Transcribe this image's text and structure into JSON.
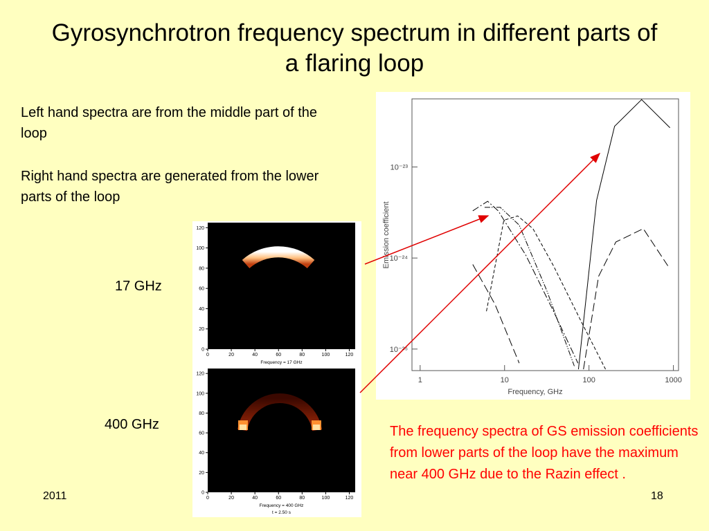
{
  "title": "Gyrosynchrotron frequency spectrum in different parts of a flaring loop",
  "paragraphs": [
    "Left hand spectra are from the middle part of the loop",
    "Right hand spectra are generated from the lower parts of the loop"
  ],
  "panels": [
    {
      "label": "17 GHz",
      "caption": "Frequency =  17 GHz",
      "lim": [
        0,
        125
      ],
      "xticks": [
        0,
        20,
        40,
        60,
        80,
        100,
        120
      ],
      "yticks": [
        0,
        20,
        40,
        60,
        80,
        100,
        120
      ]
    },
    {
      "label": "400 GHz",
      "caption": "Frequency = 400 GHz",
      "time": "t = 2.50 s",
      "lim": [
        0,
        125
      ],
      "xticks": [
        0,
        20,
        40,
        60,
        80,
        100,
        120
      ],
      "yticks": [
        0,
        20,
        40,
        60,
        80,
        100,
        120
      ]
    }
  ],
  "chart_data": {
    "type": "line",
    "xlabel": "Frequency, GHz",
    "ylabel": "Emission  coefficient",
    "log_x": true,
    "log_y": true,
    "xlim": [
      0.8,
      1150
    ],
    "ylim": [
      5.8e-26,
      5.6e-23
    ],
    "xticks": [
      1,
      10,
      100,
      1000
    ],
    "yticks": [
      {
        "value": 1e-25,
        "label": "10⁻²⁵"
      },
      {
        "value": 1e-24,
        "label": "10⁻²⁴"
      },
      {
        "value": 1e-23,
        "label": "10⁻²³"
      }
    ],
    "series": [
      {
        "color": "#000000",
        "dash": "solid",
        "x": [
          75,
          123,
          201,
          420,
          910
        ],
        "values": [
          6e-26,
          4.3e-24,
          2.8e-23,
          5.5e-23,
          2.7e-23
        ]
      },
      {
        "color": "#000000",
        "dash": "dash-dot",
        "x": [
          4.2,
          6.3,
          8.4,
          17.9,
          38,
          74
        ],
        "values": [
          3.3e-24,
          4.2e-24,
          3.3e-24,
          1.07e-24,
          2.6e-25,
          7e-26
        ]
      },
      {
        "color": "#000000",
        "dash": "dash-dot-dot",
        "x": [
          5.8,
          8.9,
          14.9,
          31.6,
          67
        ],
        "values": [
          3.6e-24,
          3.6e-24,
          2.3e-24,
          4.4e-25,
          6.5e-26
        ]
      },
      {
        "color": "#000000",
        "dash": "dash",
        "x": [
          6.1,
          9.8,
          14.3,
          21.7,
          38,
          81,
          157
        ],
        "values": [
          2.6e-25,
          2.6e-24,
          2.9e-24,
          2.1e-24,
          8.2e-25,
          2e-25,
          6e-26
        ]
      },
      {
        "color": "#000000",
        "dash": "long-dash",
        "x": [
          4.2,
          7.7,
          14.9
        ],
        "values": [
          8.5e-25,
          3.1e-25,
          7e-26
        ]
      },
      {
        "color": "#000000",
        "dash": "long-dash",
        "x": [
          86,
          130,
          208,
          440,
          860
        ],
        "values": [
          6e-26,
          6.3e-25,
          1.5e-24,
          2.1e-24,
          8.2e-25
        ]
      }
    ]
  },
  "note": "The frequency spectra of GS emission coefficients from lower parts of the loop have the maximum near 400 GHz due to the Razin effect .",
  "footer": {
    "year": "2011",
    "page": "18"
  }
}
